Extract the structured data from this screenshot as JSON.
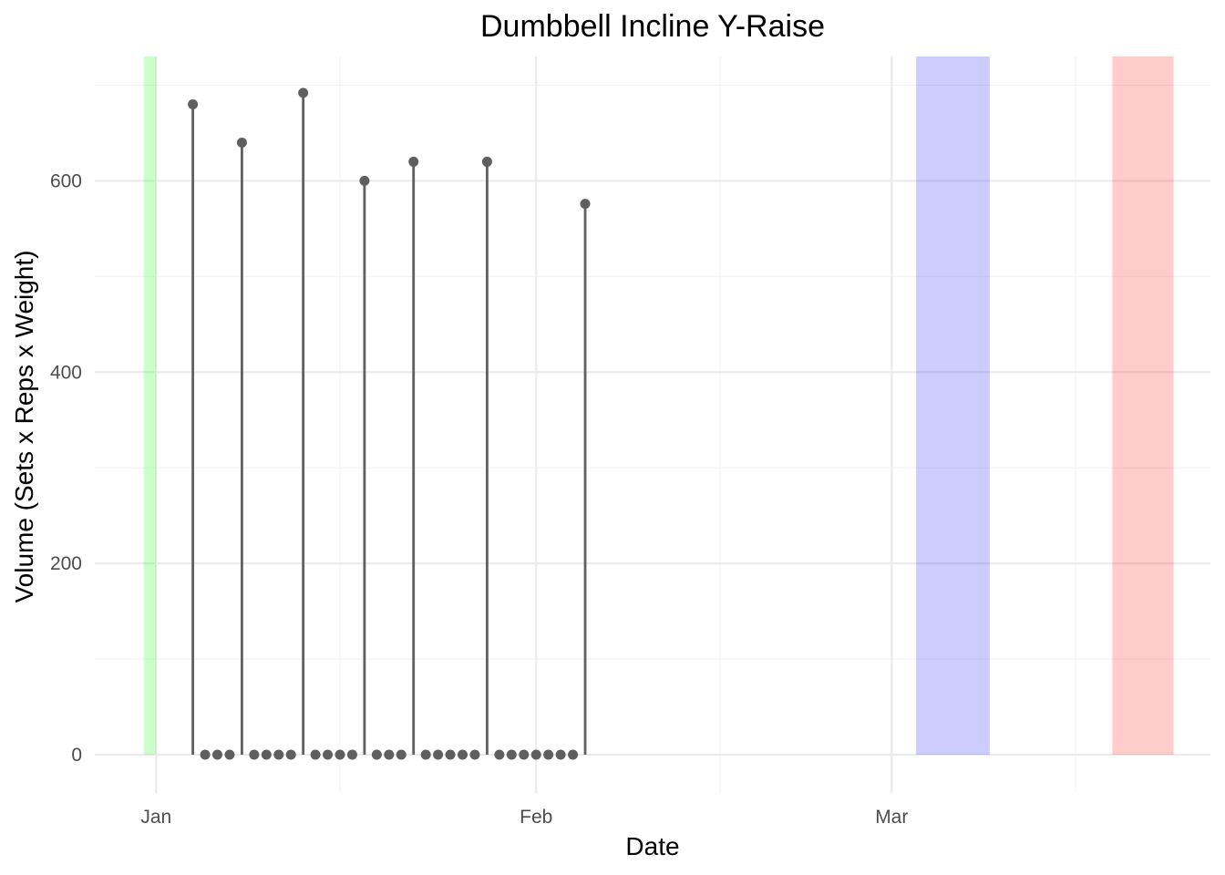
{
  "chart_data": {
    "type": "lollipop",
    "title": "Dumbbell Incline Y-Raise",
    "xlabel": "Date",
    "ylabel": "Volume (Sets x Reps x Weight)",
    "xlim": [
      "2023-12-27",
      "2024-03-27"
    ],
    "ylim": [
      -40,
      730
    ],
    "x_ticks": [
      {
        "date": "2024-01-01",
        "label": "Jan"
      },
      {
        "date": "2024-02-01",
        "label": "Feb"
      },
      {
        "date": "2024-03-01",
        "label": "Mar"
      }
    ],
    "x_minor_ticks": [
      "2024-01-16",
      "2024-02-16",
      "2024-03-16"
    ],
    "y_ticks": [
      0,
      200,
      400,
      600
    ],
    "y_minor_ticks": [
      100,
      300,
      500,
      700
    ],
    "grid": true,
    "legend": "none",
    "bands": [
      {
        "start": "2023-12-31",
        "end": "2024-01-01",
        "color": "#00ff00",
        "opacity": 0.2
      },
      {
        "start": "2024-03-03",
        "end": "2024-03-09",
        "color": "#0000ff",
        "opacity": 0.2
      },
      {
        "start": "2024-03-19",
        "end": "2024-03-24",
        "color": "#ff0000",
        "opacity": 0.2
      }
    ],
    "point_color": "#5f5f5f",
    "points": [
      {
        "date": "2024-01-04",
        "value": 680
      },
      {
        "date": "2024-01-05",
        "value": 0
      },
      {
        "date": "2024-01-06",
        "value": 0
      },
      {
        "date": "2024-01-07",
        "value": 0
      },
      {
        "date": "2024-01-08",
        "value": 640
      },
      {
        "date": "2024-01-09",
        "value": 0
      },
      {
        "date": "2024-01-10",
        "value": 0
      },
      {
        "date": "2024-01-11",
        "value": 0
      },
      {
        "date": "2024-01-12",
        "value": 0
      },
      {
        "date": "2024-01-13",
        "value": 692
      },
      {
        "date": "2024-01-14",
        "value": 0
      },
      {
        "date": "2024-01-15",
        "value": 0
      },
      {
        "date": "2024-01-16",
        "value": 0
      },
      {
        "date": "2024-01-17",
        "value": 0
      },
      {
        "date": "2024-01-18",
        "value": 600
      },
      {
        "date": "2024-01-19",
        "value": 0
      },
      {
        "date": "2024-01-20",
        "value": 0
      },
      {
        "date": "2024-01-21",
        "value": 0
      },
      {
        "date": "2024-01-22",
        "value": 620
      },
      {
        "date": "2024-01-23",
        "value": 0
      },
      {
        "date": "2024-01-24",
        "value": 0
      },
      {
        "date": "2024-01-25",
        "value": 0
      },
      {
        "date": "2024-01-26",
        "value": 0
      },
      {
        "date": "2024-01-27",
        "value": 0
      },
      {
        "date": "2024-01-28",
        "value": 620
      },
      {
        "date": "2024-01-29",
        "value": 0
      },
      {
        "date": "2024-01-30",
        "value": 0
      },
      {
        "date": "2024-01-31",
        "value": 0
      },
      {
        "date": "2024-02-01",
        "value": 0
      },
      {
        "date": "2024-02-02",
        "value": 0
      },
      {
        "date": "2024-02-03",
        "value": 0
      },
      {
        "date": "2024-02-04",
        "value": 0
      },
      {
        "date": "2024-02-05",
        "value": 576
      }
    ]
  }
}
